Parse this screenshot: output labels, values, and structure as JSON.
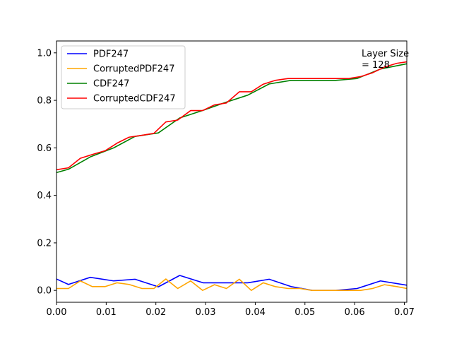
{
  "chart_data": {
    "type": "line",
    "title": "",
    "xlabel": "",
    "ylabel": "",
    "xlim": [
      0.0,
      0.0705
    ],
    "ylim": [
      -0.05,
      1.05
    ],
    "xticks": [
      0.0,
      0.01,
      0.02,
      0.03,
      0.04,
      0.05,
      0.06,
      0.07
    ],
    "xtick_labels": [
      "0.00",
      "0.01",
      "0.02",
      "0.03",
      "0.04",
      "0.05",
      "0.06",
      "0.07"
    ],
    "yticks": [
      0.0,
      0.2,
      0.4,
      0.6,
      0.8,
      1.0
    ],
    "ytick_labels": [
      "0.0",
      "0.2",
      "0.4",
      "0.6",
      "0.8",
      "1.0"
    ],
    "grid": false,
    "legend_position": "top-left",
    "annotation": [
      "Layer Size",
      "= 128"
    ],
    "series": [
      {
        "name": "PDF247",
        "color": "#0000ff",
        "x": [
          0.0,
          0.0024,
          0.0068,
          0.0115,
          0.0158,
          0.0205,
          0.0248,
          0.0295,
          0.0338,
          0.0385,
          0.0428,
          0.0472,
          0.0515,
          0.0562,
          0.0605,
          0.0652,
          0.0705
        ],
        "y": [
          0.048,
          0.025,
          0.055,
          0.04,
          0.047,
          0.015,
          0.063,
          0.032,
          0.032,
          0.032,
          0.047,
          0.016,
          0.0,
          0.0,
          0.008,
          0.04,
          0.022
        ]
      },
      {
        "name": "CorruptedPDF247",
        "color": "#ffa500",
        "x": [
          0.0,
          0.0024,
          0.0048,
          0.0072,
          0.0098,
          0.0122,
          0.0146,
          0.0172,
          0.0196,
          0.022,
          0.0244,
          0.027,
          0.0294,
          0.0318,
          0.0342,
          0.0368,
          0.0392,
          0.0416,
          0.044,
          0.0466,
          0.049,
          0.0514,
          0.0538,
          0.0564,
          0.0588,
          0.0612,
          0.0636,
          0.066,
          0.0685,
          0.0705
        ],
        "y": [
          0.008,
          0.008,
          0.04,
          0.016,
          0.016,
          0.032,
          0.025,
          0.008,
          0.008,
          0.048,
          0.008,
          0.04,
          0.0,
          0.024,
          0.008,
          0.047,
          0.0,
          0.032,
          0.016,
          0.008,
          0.008,
          0.0,
          0.0,
          0.0,
          0.0,
          0.0,
          0.008,
          0.024,
          0.016,
          0.008
        ]
      },
      {
        "name": "CDF247",
        "color": "#008000",
        "x": [
          0.0,
          0.0024,
          0.0068,
          0.0115,
          0.0158,
          0.0205,
          0.0248,
          0.0295,
          0.0338,
          0.0385,
          0.0428,
          0.0472,
          0.0515,
          0.0562,
          0.0605,
          0.0652,
          0.0705
        ],
        "y": [
          0.496,
          0.51,
          0.562,
          0.6,
          0.648,
          0.663,
          0.726,
          0.758,
          0.79,
          0.822,
          0.869,
          0.884,
          0.884,
          0.884,
          0.892,
          0.932,
          0.954
        ]
      },
      {
        "name": "CorruptedCDF247",
        "color": "#ff0000",
        "x": [
          0.0,
          0.0024,
          0.0048,
          0.0072,
          0.0098,
          0.0122,
          0.0146,
          0.0172,
          0.0196,
          0.022,
          0.0244,
          0.027,
          0.0294,
          0.0318,
          0.0342,
          0.0368,
          0.0392,
          0.0416,
          0.044,
          0.0466,
          0.049,
          0.0514,
          0.0538,
          0.0564,
          0.0588,
          0.0612,
          0.0636,
          0.066,
          0.0685,
          0.0705
        ],
        "y": [
          0.508,
          0.516,
          0.556,
          0.572,
          0.588,
          0.62,
          0.645,
          0.653,
          0.661,
          0.709,
          0.717,
          0.757,
          0.757,
          0.781,
          0.789,
          0.836,
          0.836,
          0.868,
          0.884,
          0.892,
          0.892,
          0.892,
          0.892,
          0.892,
          0.892,
          0.9,
          0.916,
          0.94,
          0.956,
          0.962
        ]
      }
    ]
  }
}
